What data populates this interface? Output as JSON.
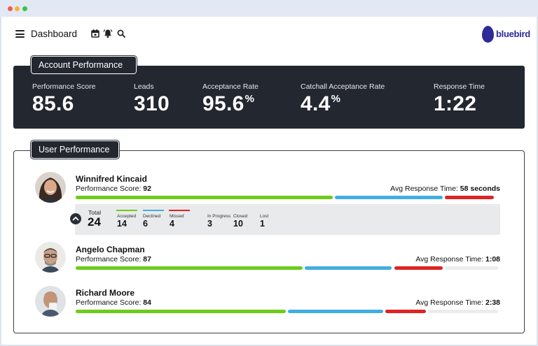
{
  "header": {
    "title": "Dashboard",
    "logo_text": "bluebird"
  },
  "colors": {
    "accepted": "#6dcc1a",
    "declined": "#42aee0",
    "missed": "#de2424",
    "remaining": "#ececec",
    "brand": "#2d2a9a"
  },
  "account": {
    "section_title": "Account Performance",
    "metrics": [
      {
        "label": "Performance Score",
        "value": "85.6",
        "suffix": ""
      },
      {
        "label": "Leads",
        "value": "310",
        "suffix": ""
      },
      {
        "label": "Acceptance Rate",
        "value": "95.6",
        "suffix": "%"
      },
      {
        "label": "Catchall Acceptance Rate",
        "value": "4.4",
        "suffix": "%"
      },
      {
        "label": "Response Time",
        "value": "1:22",
        "suffix": ""
      }
    ]
  },
  "users_section": {
    "section_title": "User Performance",
    "users": [
      {
        "name": "Winnifred Kincaid",
        "score_label": "Performance Score:",
        "score": "92",
        "resp_label": "Avg Response Time:",
        "resp": "58 seconds",
        "bars": {
          "accepted": 0.61,
          "declined": 0.26,
          "missed": 0.12,
          "remaining": 0.0
        },
        "details": {
          "total_label": "Total",
          "total": "24",
          "stats": [
            {
              "label": "Accepted",
              "value": "14"
            },
            {
              "label": "Declined",
              "value": "6"
            },
            {
              "label": "Missed",
              "value": "4"
            },
            {
              "label": "In Progress",
              "value": "3"
            },
            {
              "label": "Closed",
              "value": "10"
            },
            {
              "label": "Lost",
              "value": "1"
            }
          ]
        }
      },
      {
        "name": "Angelo Chapman",
        "score_label": "Performance Score:",
        "score": "87",
        "resp_label": "Avg Response Time:",
        "resp": "1:08",
        "bars": {
          "accepted": 0.54,
          "declined": 0.21,
          "missed": 0.12,
          "remaining": 0.13
        }
      },
      {
        "name": "Richard Moore",
        "score_label": "Performance Score:",
        "score": "84",
        "resp_label": "Avg Response Time:",
        "resp": "2:38",
        "bars": {
          "accepted": 0.5,
          "declined": 0.23,
          "missed": 0.1,
          "remaining": 0.17
        }
      }
    ]
  }
}
